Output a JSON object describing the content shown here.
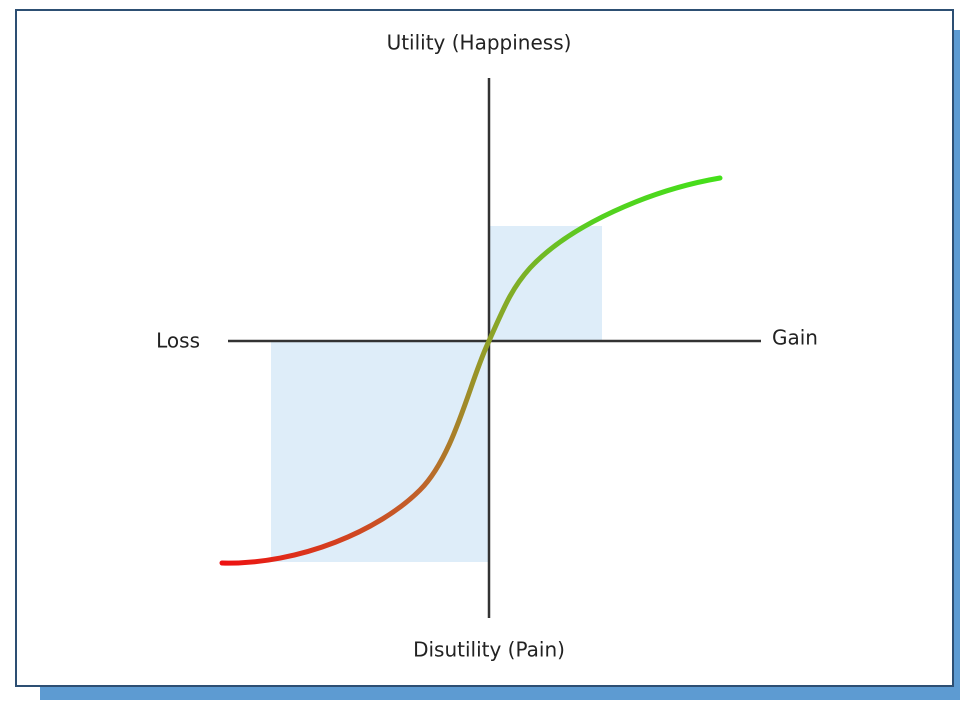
{
  "diagram": {
    "y_axis_top": "Utility (Happiness)",
    "y_axis_bottom": "Disutility (Pain)",
    "x_axis_left": "Loss",
    "x_axis_right": "Gain"
  }
}
